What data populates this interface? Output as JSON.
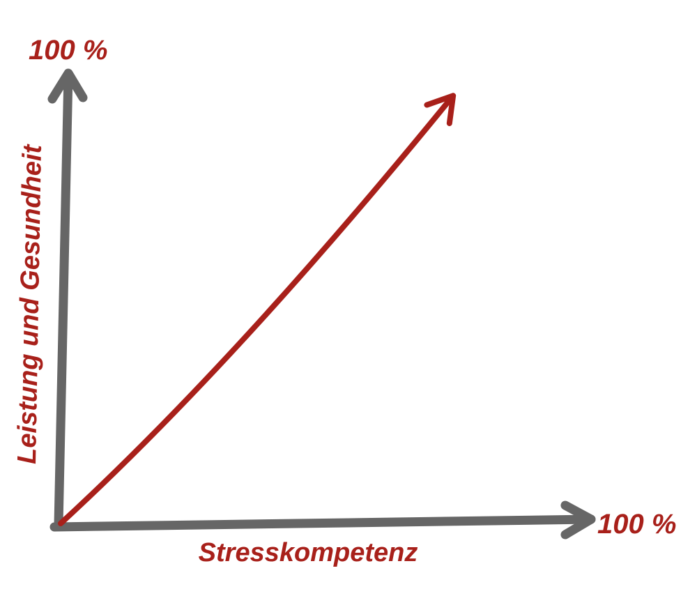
{
  "chart_data": {
    "type": "line",
    "title": "",
    "xlabel": "Stresskompetenz",
    "ylabel": "Leistung und Gesundheit",
    "x_axis_end_label": "100 %",
    "y_axis_end_label": "100 %",
    "xlim": [
      0,
      100
    ],
    "ylim": [
      0,
      100
    ],
    "grid": false,
    "legend": "none",
    "series": [
      {
        "x": [
          0,
          74
        ],
        "y": [
          0,
          95
        ]
      }
    ],
    "colors": {
      "axis": "#666666",
      "line": "#a8201a",
      "text": "#a8201a",
      "background": "#ffffff"
    }
  }
}
